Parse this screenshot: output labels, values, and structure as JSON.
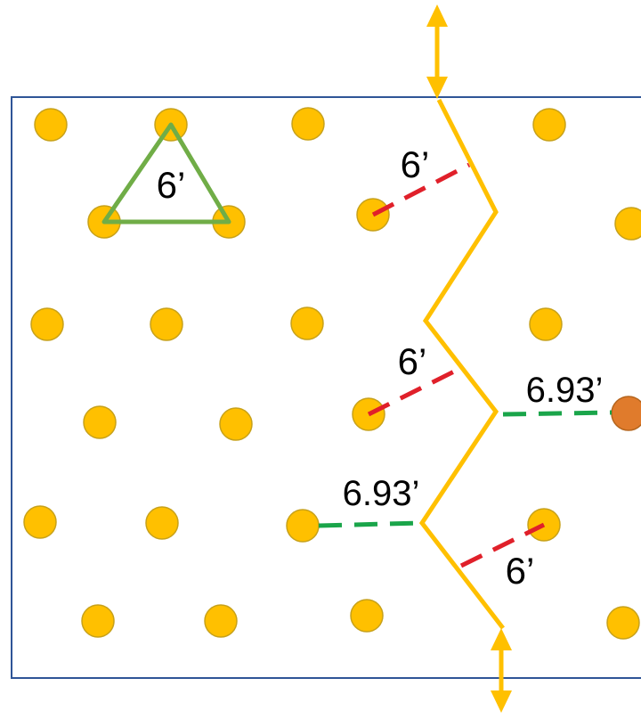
{
  "colors": {
    "border": "#2f5597",
    "post": "#ffc000",
    "post_outline": "#c7a11a",
    "highlight_post": "#e07b2c",
    "highlight_outline": "#b5651d",
    "path": "#ffc000",
    "spacing_green": "#70ad47",
    "measure_red": "#e0202a",
    "measure_green": "#1aa54a",
    "text": "#000000"
  },
  "labels": {
    "triangle_spacing": "6’",
    "perpendicular_top": "6’",
    "perpendicular_middle": "6’",
    "perpendicular_bottom": "6’",
    "gap_right": "6.93’",
    "gap_left": "6.93’"
  },
  "icons": {
    "arrow_top": "double-headed-arrow-icon",
    "arrow_bottom": "double-headed-arrow-icon"
  }
}
